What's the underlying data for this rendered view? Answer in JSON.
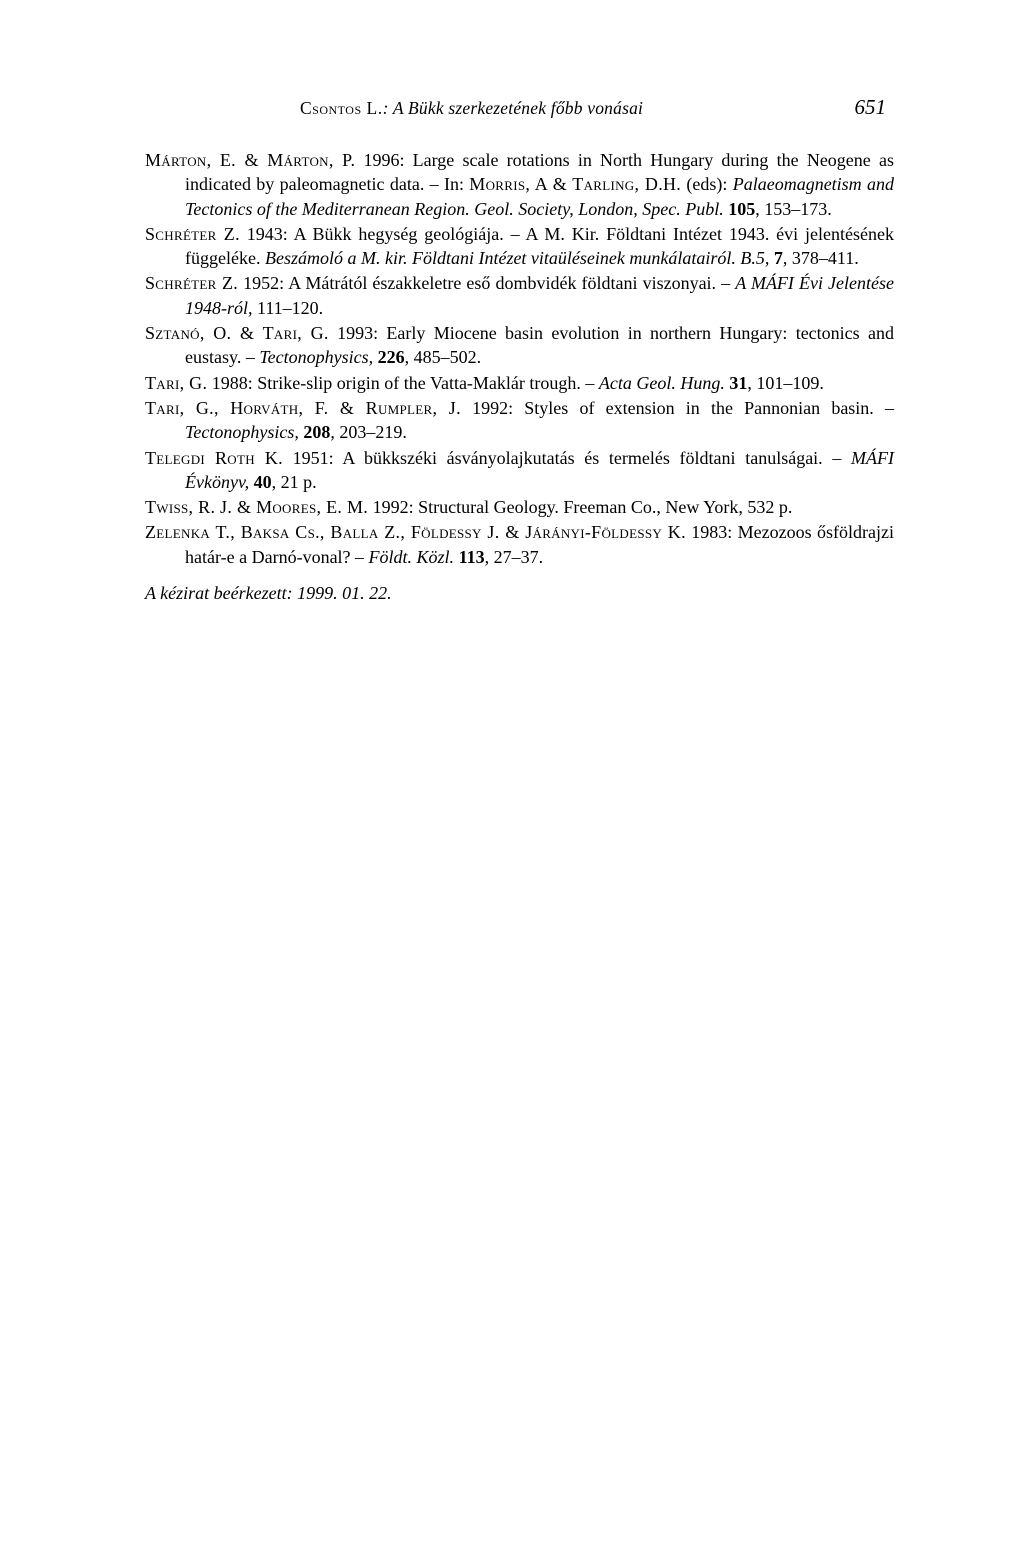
{
  "header": {
    "running_head_author": "Csontos L.",
    "running_head_title": ": A Bükk szerkezetének főbb vonásai",
    "page_number": "651"
  },
  "references": [
    {
      "authors": "Márton, E. & Márton, P.",
      "rest": " 1996: Large scale rotations in North Hungary during the Neogene as indicated by paleomagnetic data. – In: ",
      "authors2": "Morris, A & Tarling, D.H.",
      "rest2": " (eds): ",
      "italic1": "Palaeomagnetism and Tectonics of the Mediterranean Region. Geol. Society, London, Spec. Publ.",
      "rest3": " ",
      "bold1": "105",
      "rest4": ", 153–173."
    },
    {
      "authors": "Schréter Z.",
      "rest": " 1943: A Bükk hegység geológiája. – A M. Kir. Földtani Intézet 1943. évi jelentésének függeléke. ",
      "italic1": "Beszámoló a M. kir. Földtani Intézet vitaüléseinek munkálatairól. B.5,",
      "rest2": " ",
      "bold1": "7",
      "rest3": ", 378–411."
    },
    {
      "authors": "Schréter Z.",
      "rest": " 1952: A Mátrától északkeletre eső dombvidék földtani viszonyai. – ",
      "italic1": "A MÁFI Évi Jelentése 1948-ról,",
      "rest2": " 111–120."
    },
    {
      "authors": "Sztanó, O. & Tari, G.",
      "rest": " 1993: Early Miocene basin evolution in northern Hungary: tectonics and eustasy. – ",
      "italic1": "Tectonophysics,",
      "rest2": " ",
      "bold1": "226",
      "rest3": ", 485–502."
    },
    {
      "authors": "Tari, G.",
      "rest": " 1988: Strike-slip origin of the Vatta-Maklár trough. – ",
      "italic1": "Acta Geol. Hung.",
      "rest2": " ",
      "bold1": "31",
      "rest3": ", 101–109."
    },
    {
      "authors": "Tari, G., Horváth, F. & Rumpler, J.",
      "rest": " 1992: Styles of extension in the Pannonian basin. – ",
      "italic1": "Tectonophysics,",
      "rest2": " ",
      "bold1": "208",
      "rest3": ", 203–219."
    },
    {
      "authors": "Telegdi Roth K.",
      "rest": " 1951: A bükkszéki ásványolajkutatás és termelés földtani tanulságai. – ",
      "italic1": "MÁFI Évkönyv,",
      "rest2": " ",
      "bold1": "40",
      "rest3": ", 21 p."
    },
    {
      "authors": "Twiss, R. J. & Moores, E. M.",
      "rest": " 1992: Structural Geology. Freeman Co., New York, 532 p."
    },
    {
      "authors": "Zelenka T., Baksa Cs., Balla Z., Földessy J. & Járányi-Földessy K.",
      "rest": " 1983: Mezozoos ősföldrajzi határ-e a Darnó-vonal? – ",
      "italic1": "Földt. Közl.",
      "rest2": " ",
      "bold1": "113",
      "rest3": ", 27–37."
    }
  ],
  "manuscript": "A kézirat beérkezett: 1999. 01. 22."
}
